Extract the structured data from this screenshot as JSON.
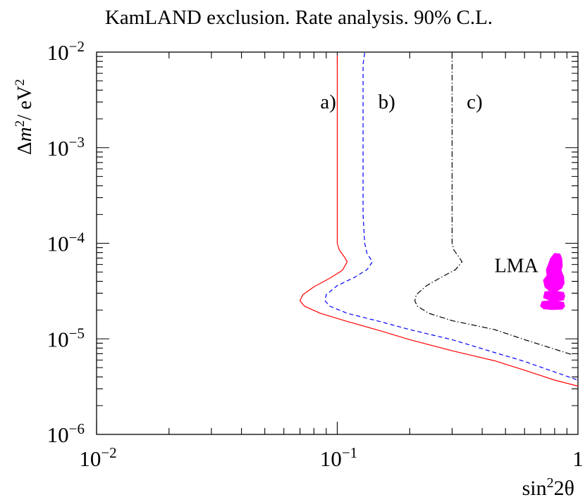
{
  "chart_data": {
    "type": "line",
    "title": "KamLAND exclusion.  Rate analysis.  90% C.L.",
    "xlabel": {
      "base": "sin",
      "sup": "2",
      "rest": "2θ"
    },
    "ylabel": {
      "pre": "Δ",
      "m": "m",
      "sup": "2",
      "rest": "/ eV",
      "sup2": "2"
    },
    "x_scale": "log",
    "y_scale": "log",
    "xlim": [
      0.01,
      1
    ],
    "ylim": [
      1e-06,
      0.01
    ],
    "x_ticks": [
      {
        "base": "10",
        "exp": "−2"
      },
      {
        "base": "10",
        "exp": "−1"
      },
      {
        "base": "1",
        "exp": ""
      }
    ],
    "y_ticks": [
      {
        "base": "10",
        "exp": "−6"
      },
      {
        "base": "10",
        "exp": "−5"
      },
      {
        "base": "10",
        "exp": "−4"
      },
      {
        "base": "10",
        "exp": "−3"
      },
      {
        "base": "10",
        "exp": "−2"
      }
    ],
    "series": [
      {
        "name": "a)",
        "color": "#ff0000",
        "dash": "",
        "label_at": [
          0.085,
          0.0031
        ],
        "points": [
          [
            0.1,
            0.0092
          ],
          [
            0.1,
            0.0058
          ],
          [
            0.1,
            0.001
          ],
          [
            0.1,
            0.0001
          ],
          [
            0.102,
            8.5e-05
          ],
          [
            0.107,
            7.2e-05
          ],
          [
            0.11,
            6.4e-05
          ],
          [
            0.105,
            5.2e-05
          ],
          [
            0.093,
            4.3e-05
          ],
          [
            0.08,
            3.5e-05
          ],
          [
            0.072,
            2.9e-05
          ],
          [
            0.07,
            2.5e-05
          ],
          [
            0.073,
            2.2e-05
          ],
          [
            0.085,
            1.85e-05
          ],
          [
            0.11,
            1.52e-05
          ],
          [
            0.15,
            1.22e-05
          ],
          [
            0.2,
            9.8e-06
          ],
          [
            0.3,
            7.5e-06
          ],
          [
            0.45,
            5.9e-06
          ],
          [
            0.6,
            4.7e-06
          ],
          [
            0.8,
            3.7e-06
          ],
          [
            1.0,
            3.2e-06
          ]
        ]
      },
      {
        "name": "b)",
        "color": "#0000ff",
        "dash": "6,4",
        "label_at": [
          0.148,
          0.0031
        ],
        "points": [
          [
            0.13,
            0.0098
          ],
          [
            0.128,
            0.0075
          ],
          [
            0.128,
            0.003
          ],
          [
            0.128,
            0.0002
          ],
          [
            0.13,
            0.0001
          ],
          [
            0.133,
            7.8e-05
          ],
          [
            0.14,
            6.4e-05
          ],
          [
            0.133,
            5.3e-05
          ],
          [
            0.118,
            4.4e-05
          ],
          [
            0.1,
            3.6e-05
          ],
          [
            0.09,
            2.9e-05
          ],
          [
            0.089,
            2.5e-05
          ],
          [
            0.093,
            2.2e-05
          ],
          [
            0.11,
            1.85e-05
          ],
          [
            0.15,
            1.52e-05
          ],
          [
            0.2,
            1.25e-05
          ],
          [
            0.3,
            9.8e-06
          ],
          [
            0.45,
            7.2e-06
          ],
          [
            0.6,
            5.8e-06
          ],
          [
            0.8,
            4.5e-06
          ],
          [
            1.0,
            3.7e-06
          ]
        ]
      },
      {
        "name": "c)",
        "color": "#000000",
        "dash": "8,3,1.5,3",
        "label_at": [
          0.345,
          0.0031
        ],
        "points": [
          [
            0.3,
            0.0098
          ],
          [
            0.3,
            0.0075
          ],
          [
            0.3,
            0.003
          ],
          [
            0.3,
            0.0001
          ],
          [
            0.305,
            8.5e-05
          ],
          [
            0.32,
            7.2e-05
          ],
          [
            0.33,
            6.4e-05
          ],
          [
            0.31,
            5.3e-05
          ],
          [
            0.27,
            4.4e-05
          ],
          [
            0.235,
            3.6e-05
          ],
          [
            0.213,
            2.9e-05
          ],
          [
            0.21,
            2.5e-05
          ],
          [
            0.215,
            2.2e-05
          ],
          [
            0.24,
            1.85e-05
          ],
          [
            0.3,
            1.55e-05
          ],
          [
            0.45,
            1.25e-05
          ],
          [
            0.6,
            9.8e-06
          ],
          [
            0.8,
            7.8e-06
          ],
          [
            0.95,
            6.8e-06
          ]
        ]
      }
    ],
    "regions": [
      {
        "name": "LMA",
        "color": "#ff00ff",
        "label_at": [
          0.45,
          5.9e-05
        ],
        "blobs": [
          [
            [
              0.77,
              6.9e-05
            ],
            [
              0.8,
              7.8e-05
            ],
            [
              0.84,
              7.7e-05
            ],
            [
              0.855,
              7e-05
            ],
            [
              0.86,
              5.8e-05
            ],
            [
              0.85,
              5.2e-05
            ],
            [
              0.87,
              4.5e-05
            ],
            [
              0.875,
              3.8e-05
            ],
            [
              0.855,
              3.4e-05
            ],
            [
              0.82,
              3.2e-05
            ],
            [
              0.76,
              3.2e-05
            ],
            [
              0.73,
              3.5e-05
            ],
            [
              0.72,
              4.1e-05
            ],
            [
              0.745,
              4.6e-05
            ],
            [
              0.74,
              5.3e-05
            ],
            [
              0.755,
              6e-05
            ]
          ],
          [
            [
              0.73,
              3.1e-05
            ],
            [
              0.8,
              3.15e-05
            ],
            [
              0.87,
              3.05e-05
            ],
            [
              0.88,
              2.8e-05
            ],
            [
              0.87,
              2.55e-05
            ],
            [
              0.82,
              2.5e-05
            ],
            [
              0.76,
              2.55e-05
            ],
            [
              0.72,
              2.7e-05
            ]
          ],
          [
            [
              0.71,
              2.45e-05
            ],
            [
              0.78,
              2.5e-05
            ],
            [
              0.87,
              2.4e-05
            ],
            [
              0.88,
              2.2e-05
            ],
            [
              0.86,
              2.05e-05
            ],
            [
              0.78,
              2.03e-05
            ],
            [
              0.72,
              2.07e-05
            ],
            [
              0.7,
              2.2e-05
            ]
          ]
        ]
      }
    ]
  }
}
